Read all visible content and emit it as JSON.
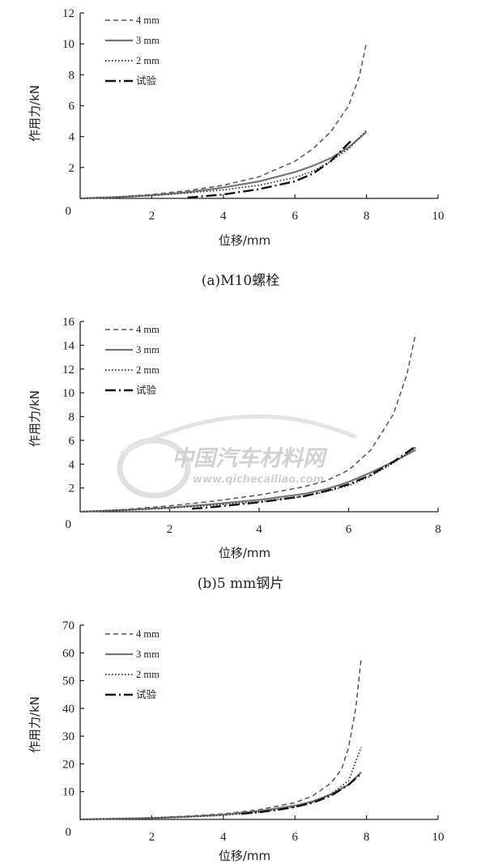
{
  "watermark": {
    "brand": "中国汽车材料网",
    "url": "www.qichecailiao.com"
  },
  "chart_data": [
    {
      "type": "line",
      "caption": "(a)M10螺栓",
      "xlabel": "位移/mm",
      "ylabel": "作用力/kN",
      "xlim": [
        0,
        10
      ],
      "ylim": [
        0,
        12
      ],
      "xticks": [
        2,
        4,
        6,
        8,
        10
      ],
      "yticks": [
        2,
        4,
        6,
        8,
        10,
        12
      ],
      "origin_label": "0",
      "legend_position": "top-left",
      "series": [
        {
          "name": "4 mm",
          "style": "dashed",
          "color": "#555555",
          "x": [
            0,
            1,
            2,
            3,
            4,
            5,
            6,
            6.5,
            7,
            7.5,
            7.8,
            8
          ],
          "y": [
            0,
            0.1,
            0.25,
            0.5,
            0.85,
            1.4,
            2.4,
            3.2,
            4.3,
            6.0,
            7.9,
            10.1
          ]
        },
        {
          "name": "3 mm",
          "style": "solid",
          "color": "#777777",
          "x": [
            0,
            1,
            2,
            3,
            4,
            5,
            6,
            6.5,
            7,
            7.5,
            8
          ],
          "y": [
            0,
            0.08,
            0.2,
            0.4,
            0.7,
            1.1,
            1.7,
            2.1,
            2.6,
            3.3,
            4.3
          ]
        },
        {
          "name": "2 mm",
          "style": "dotted",
          "color": "#333333",
          "x": [
            0,
            1,
            2,
            3,
            4,
            5,
            6,
            6.5,
            7,
            7.5,
            8
          ],
          "y": [
            0,
            0.07,
            0.18,
            0.35,
            0.55,
            0.85,
            1.35,
            1.75,
            2.4,
            3.2,
            4.4
          ]
        },
        {
          "name": "试验",
          "style": "dashdot",
          "color": "#111111",
          "x": [
            3.0,
            4,
            5,
            6,
            6.5,
            7,
            7.3,
            7.6
          ],
          "y": [
            0.05,
            0.25,
            0.6,
            1.1,
            1.6,
            2.4,
            3.1,
            3.8
          ]
        }
      ]
    },
    {
      "type": "line",
      "caption": "(b)5 mm钢片",
      "xlabel": "位移/mm",
      "ylabel": "作用力/kN",
      "xlim": [
        0,
        8
      ],
      "ylim": [
        0,
        16
      ],
      "xticks": [
        2,
        4,
        6,
        8
      ],
      "yticks": [
        2,
        4,
        6,
        8,
        10,
        12,
        14,
        16
      ],
      "origin_label": "0",
      "legend_position": "top-left",
      "series": [
        {
          "name": "4 mm",
          "style": "dashed",
          "color": "#555555",
          "x": [
            0,
            1,
            2,
            3,
            4,
            5,
            5.5,
            6,
            6.5,
            7,
            7.3,
            7.5
          ],
          "y": [
            0,
            0.2,
            0.5,
            0.9,
            1.4,
            2.1,
            2.6,
            3.5,
            5.2,
            8.2,
            11.5,
            15.0
          ]
        },
        {
          "name": "3 mm",
          "style": "solid",
          "color": "#777777",
          "x": [
            0,
            1,
            2,
            3,
            4,
            5,
            5.5,
            6,
            6.5,
            7,
            7.5
          ],
          "y": [
            0,
            0.15,
            0.35,
            0.65,
            1.0,
            1.5,
            1.9,
            2.5,
            3.3,
            4.2,
            5.2
          ]
        },
        {
          "name": "2 mm",
          "style": "dotted",
          "color": "#333333",
          "x": [
            0,
            1,
            2,
            3,
            4,
            5,
            5.5,
            6,
            6.5,
            7,
            7.5
          ],
          "y": [
            0,
            0.12,
            0.3,
            0.55,
            0.85,
            1.3,
            1.7,
            2.2,
            3.0,
            4.1,
            5.4
          ]
        },
        {
          "name": "试验",
          "style": "dashdot",
          "color": "#111111",
          "x": [
            2.5,
            3,
            4,
            5,
            5.5,
            6,
            6.5,
            7,
            7.5
          ],
          "y": [
            0.25,
            0.4,
            0.8,
            1.3,
            1.75,
            2.3,
            3.1,
            4.2,
            5.5
          ]
        }
      ]
    },
    {
      "type": "line",
      "caption": "",
      "xlabel": "位移/mm",
      "ylabel": "作用力/kN",
      "xlim": [
        0,
        10
      ],
      "ylim": [
        0,
        70
      ],
      "xticks": [
        2,
        4,
        6,
        8,
        10
      ],
      "yticks": [
        10,
        20,
        30,
        40,
        50,
        60,
        70
      ],
      "origin_label": "0",
      "legend_position": "top-left",
      "series": [
        {
          "name": "4 mm",
          "style": "dashed",
          "color": "#555555",
          "x": [
            0,
            1,
            2,
            3,
            4,
            5,
            6,
            6.5,
            7,
            7.3,
            7.5,
            7.7,
            7.85
          ],
          "y": [
            0,
            0.3,
            0.6,
            1.2,
            2.0,
            3.5,
            6.0,
            8.5,
            13.0,
            18.0,
            26.0,
            40.0,
            58.0
          ]
        },
        {
          "name": "3 mm",
          "style": "solid",
          "color": "#777777",
          "x": [
            0,
            1,
            2,
            3,
            4,
            5,
            6,
            6.5,
            7,
            7.5,
            7.85
          ],
          "y": [
            0,
            0.25,
            0.5,
            1.0,
            1.7,
            3.0,
            5.0,
            6.5,
            9.0,
            12.5,
            17.0
          ]
        },
        {
          "name": "2 mm",
          "style": "dotted",
          "color": "#333333",
          "x": [
            0,
            1,
            2,
            3,
            4,
            5,
            6,
            6.5,
            7,
            7.5,
            7.85
          ],
          "y": [
            0,
            0.2,
            0.45,
            0.9,
            1.5,
            2.6,
            4.5,
            6.2,
            9.0,
            14.0,
            26.0
          ]
        },
        {
          "name": "试验",
          "style": "dashdot",
          "color": "#111111",
          "x": [
            4.5,
            5,
            5.5,
            6,
            6.5,
            7,
            7.5,
            7.85
          ],
          "y": [
            2.0,
            2.6,
            3.4,
            4.5,
            6.0,
            8.5,
            12.5,
            16.5
          ]
        }
      ]
    }
  ]
}
